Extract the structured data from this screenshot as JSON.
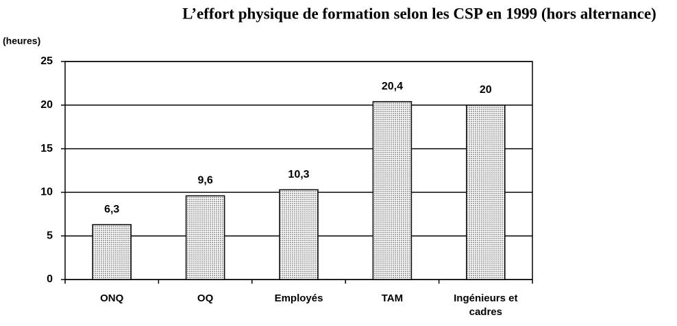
{
  "chart_data": {
    "type": "bar",
    "title": "L’effort physique de formation selon les CSP en 1999 (hors alternance)",
    "y_label": "(heures)",
    "categories": [
      "ONQ",
      "OQ",
      "Employés",
      "TAM",
      "Ingénieurs et cadres"
    ],
    "values": [
      6.3,
      9.6,
      10.3,
      20.4,
      20
    ],
    "value_labels": [
      "6,3",
      "9,6",
      "10,3",
      "20,4",
      "20"
    ],
    "color": "#a8a8a8",
    "ylim": [
      0,
      25
    ],
    "yticks": [
      0,
      5,
      10,
      15,
      20,
      25
    ],
    "grid": true
  }
}
